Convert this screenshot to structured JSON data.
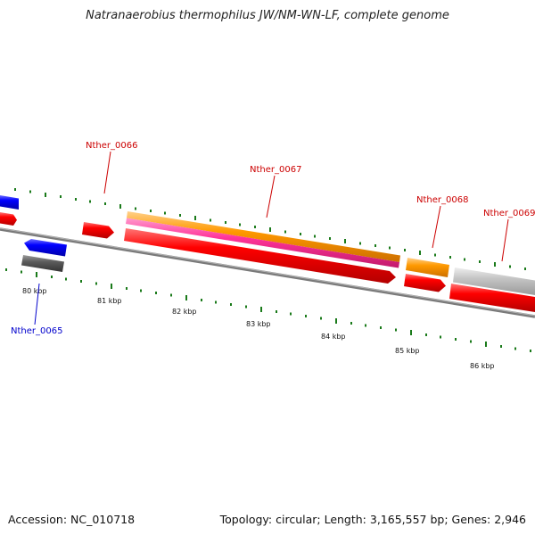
{
  "title": "Natranaerobius thermophilus JW/NM-WN-LF, complete genome",
  "footer": {
    "accession": "Accession: NC_010718",
    "topology": "Topology: circular; Length: 3,165,557 bp; Genes: 2,946"
  },
  "ruler": {
    "labels": [
      "80 kbp",
      "81 kbp",
      "82 kbp",
      "83 kbp",
      "84 kbp",
      "85 kbp",
      "86 kbp"
    ]
  },
  "genes": [
    {
      "label": "Nther_0065",
      "color": "#0000cc"
    },
    {
      "label": "Nther_0066",
      "color": "#cc0000"
    },
    {
      "label": "Nther_0067",
      "color": "#cc0000"
    },
    {
      "label": "Nther_0068",
      "color": "#cc0000"
    },
    {
      "label": "Nther_0069",
      "color": "#cc0000"
    }
  ],
  "colors": {
    "cds_red": "#ff0000",
    "cds_blue": "#0000ff",
    "orange": "#ff9900",
    "magenta": "#ff3399",
    "light_gray": "#bdbdbd",
    "dark_gray": "#595959",
    "backbone": "#888888",
    "tick_green": "#1a7a1a"
  }
}
